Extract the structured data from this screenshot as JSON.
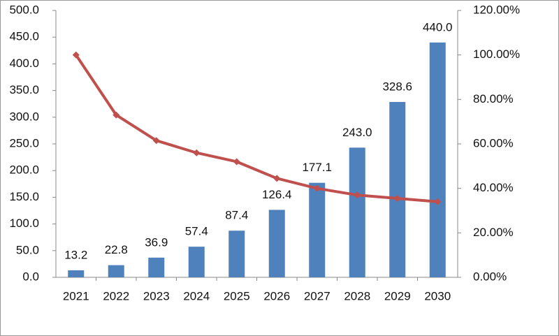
{
  "chart_data": {
    "type": "bar",
    "categories": [
      "2021",
      "2022",
      "2023",
      "2024",
      "2025",
      "2026",
      "2027",
      "2028",
      "2029",
      "2030"
    ],
    "series": [
      {
        "color": "#4f81bd",
        "values": [
          13.2,
          22.8,
          36.9,
          57.4,
          87.4,
          126.4,
          177.1,
          243.0,
          328.6,
          440.0
        ],
        "value_labels": [
          "13.2",
          "22.8",
          "36.9",
          "57.4",
          "87.4",
          "126.4",
          "177.1",
          "243.0",
          "328.6",
          "440.0"
        ]
      },
      {
        "type": "line",
        "axis": "y2",
        "color": "#c0504d",
        "values": [
          100,
          73,
          61.5,
          56,
          52,
          44.5,
          40,
          37,
          35.5,
          34
        ]
      }
    ],
    "ylim": [
      0,
      500
    ],
    "yticks": [
      {
        "value": 0,
        "label": "0.0"
      },
      {
        "value": 50,
        "label": "50.0"
      },
      {
        "value": 100,
        "label": "100.0"
      },
      {
        "value": 150,
        "label": "150.0"
      },
      {
        "value": 200,
        "label": "200.0"
      },
      {
        "value": 250,
        "label": "250.0"
      },
      {
        "value": 300,
        "label": "300.0"
      },
      {
        "value": 350,
        "label": "350.0"
      },
      {
        "value": 400,
        "label": "400.0"
      },
      {
        "value": 450,
        "label": "450.0"
      },
      {
        "value": 500,
        "label": "500.0"
      }
    ],
    "y2lim": [
      0,
      120
    ],
    "y2ticks": [
      {
        "value": 0,
        "label": "0.00%"
      },
      {
        "value": 20,
        "label": "20.00%"
      },
      {
        "value": 40,
        "label": "40.00%"
      },
      {
        "value": 60,
        "label": "60.00%"
      },
      {
        "value": 80,
        "label": "80.00%"
      },
      {
        "value": 100,
        "label": "100.00%"
      },
      {
        "value": 120,
        "label": "120.00%"
      }
    ],
    "grid": false
  }
}
